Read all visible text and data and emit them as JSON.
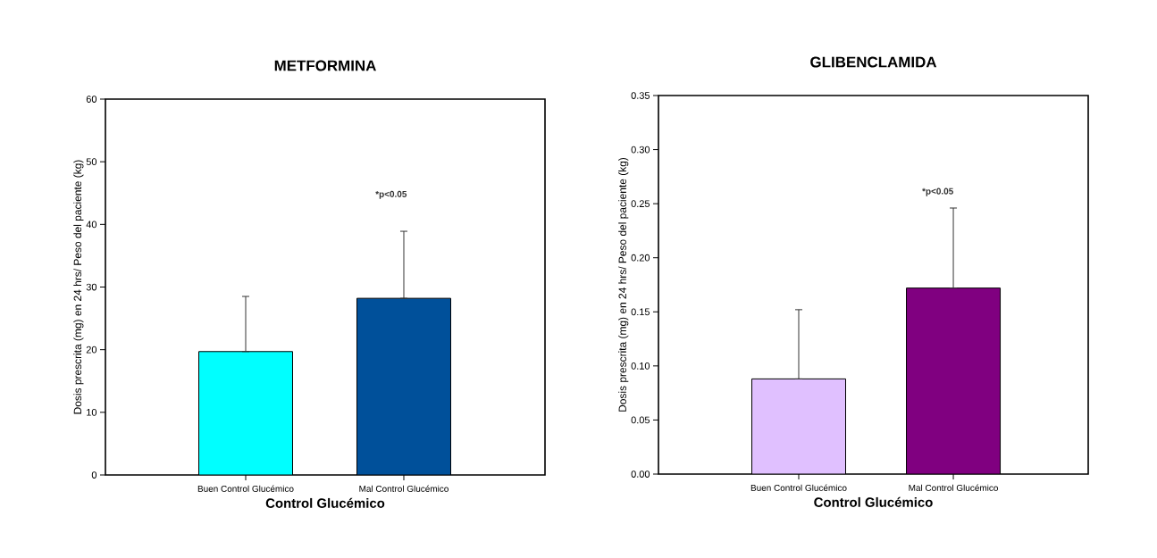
{
  "chart_data": [
    {
      "type": "bar",
      "title": "METFORMINA",
      "xlabel": "Control Glucémico",
      "ylabel": "Dosis prescrita (mg) en 24 hrs/ Peso del paciente (kg)",
      "categories": [
        "Buen Control Glucémico",
        "Mal Control Glucémico"
      ],
      "values": [
        19.7,
        28.2
      ],
      "colors": [
        "#00ffff",
        "#00509a"
      ],
      "errors": [
        [
          19.7,
          28.5
        ],
        [
          28.2,
          38.9
        ]
      ],
      "ylim": [
        0,
        60
      ],
      "yticks": [
        0,
        10,
        20,
        30,
        40,
        50,
        60
      ],
      "grid": false,
      "annotations": [
        "*p<0.05"
      ]
    },
    {
      "type": "bar",
      "title": "GLIBENCLAMIDA",
      "xlabel": "Control Glucémico",
      "ylabel": "Dosis prescrita (mg) en 24 hrs/ Peso del paciente (kg)",
      "categories": [
        "Buen Control Glucémico",
        "Mal Control Glucémico"
      ],
      "values": [
        0.088,
        0.172
      ],
      "colors": [
        "#e0c0ff",
        "#800080"
      ],
      "errors": [
        [
          0.088,
          0.152
        ],
        [
          0.172,
          0.246
        ]
      ],
      "ylim": [
        0,
        0.35
      ],
      "yticks": [
        {
          "value": 0,
          "label": "0.00"
        },
        {
          "value": 0.05,
          "label": "0.05"
        },
        {
          "value": 0.1,
          "label": "0.10"
        },
        {
          "value": 0.15,
          "label": "0.15"
        },
        {
          "value": 0.2,
          "label": "0.20"
        },
        {
          "value": 0.25,
          "label": "0.25"
        },
        {
          "value": 0.3,
          "label": "0.30"
        },
        {
          "value": 0.35,
          "label": "0.35"
        }
      ],
      "grid": false,
      "annotations": [
        "*p<0.05"
      ]
    }
  ]
}
